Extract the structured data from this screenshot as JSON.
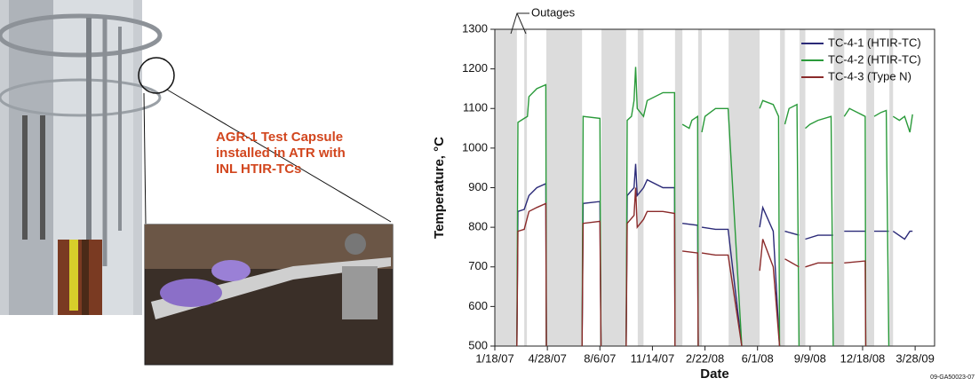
{
  "figure": {
    "callout": [
      "AGR-1 Test Capsule",
      "installed in ATR with",
      "INL HTIR-TCs"
    ]
  },
  "chart_data": {
    "type": "line",
    "x_label": "Date",
    "y_label": "Temperature, °C",
    "annotation": "Outages",
    "note": "09-GA50023-07",
    "xlim": [
      0,
      837
    ],
    "ylim": [
      500,
      1300
    ],
    "xticks": [
      {
        "value": 0,
        "label": "1/18/07"
      },
      {
        "value": 100,
        "label": "4/28/07"
      },
      {
        "value": 200,
        "label": "8/6/07"
      },
      {
        "value": 300,
        "label": "11/14/07"
      },
      {
        "value": 400,
        "label": "2/22/08"
      },
      {
        "value": 500,
        "label": "6/1/08"
      },
      {
        "value": 600,
        "label": "9/9/08"
      },
      {
        "value": 700,
        "label": "12/18/08"
      },
      {
        "value": 800,
        "label": "3/28/09"
      }
    ],
    "yticks": [
      500,
      600,
      700,
      800,
      900,
      1000,
      1100,
      1200,
      1300
    ],
    "outages": [
      [
        0,
        42
      ],
      [
        56,
        61
      ],
      [
        98,
        166
      ],
      [
        203,
        250
      ],
      [
        272,
        283
      ],
      [
        343,
        357
      ],
      [
        387,
        394
      ],
      [
        445,
        504
      ],
      [
        543,
        552
      ],
      [
        580,
        591
      ],
      [
        645,
        665
      ],
      [
        707,
        722
      ],
      [
        751,
        758
      ]
    ],
    "outage_color": "#dcdcdc",
    "legend": "upper right",
    "series": [
      {
        "name": "TC-4-1 (HTIR-TC)",
        "color": "#2b2a78",
        "x": [
          42,
          44,
          56,
          65,
          80,
          97,
          98,
          null,
          166,
          168,
          200,
          202,
          null,
          250,
          252,
          265,
          268,
          271,
          283,
          290,
          320,
          342,
          343,
          null,
          357,
          386,
          387,
          null,
          394,
          420,
          444,
          470,
          null,
          504,
          510,
          530,
          542,
          null,
          552,
          579,
          null,
          591,
          615,
          644,
          null,
          665,
          705,
          null,
          722,
          750,
          null,
          758,
          780,
          790,
          795
        ],
        "values": [
          500,
          840,
          845,
          880,
          900,
          910,
          500,
          null,
          500,
          860,
          865,
          500,
          null,
          500,
          880,
          900,
          960,
          880,
          900,
          920,
          900,
          900,
          500,
          null,
          810,
          805,
          500,
          null,
          800,
          795,
          795,
          500,
          null,
          800,
          850,
          790,
          500,
          null,
          790,
          780,
          null,
          770,
          780,
          780,
          null,
          790,
          790,
          null,
          790,
          790,
          null,
          790,
          770,
          790,
          790
        ]
      },
      {
        "name": "TC-4-2 (HTIR-TC)",
        "color": "#2a9a3a",
        "x": [
          42,
          44,
          56,
          62,
          65,
          80,
          97,
          98,
          null,
          166,
          168,
          200,
          202,
          null,
          250,
          252,
          260,
          265,
          268,
          271,
          283,
          290,
          320,
          342,
          343,
          null,
          357,
          370,
          375,
          386,
          387,
          null,
          394,
          400,
          410,
          420,
          444,
          470,
          null,
          504,
          510,
          530,
          540,
          542,
          null,
          552,
          560,
          575,
          579,
          null,
          591,
          600,
          615,
          640,
          644,
          null,
          665,
          675,
          690,
          705,
          706,
          null,
          722,
          735,
          745,
          750,
          null,
          758,
          770,
          780,
          790,
          795
        ],
        "values": [
          500,
          1065,
          1075,
          1080,
          1130,
          1150,
          1160,
          500,
          null,
          500,
          1080,
          1075,
          500,
          null,
          500,
          1070,
          1080,
          1120,
          1205,
          1100,
          1080,
          1120,
          1140,
          1140,
          500,
          null,
          1060,
          1050,
          1070,
          1080,
          500,
          null,
          1040,
          1080,
          1090,
          1100,
          1100,
          500,
          null,
          1100,
          1120,
          1110,
          1080,
          500,
          null,
          1060,
          1100,
          1110,
          500,
          null,
          1050,
          1060,
          1070,
          1080,
          500,
          null,
          1080,
          1100,
          1090,
          1080,
          500,
          null,
          1080,
          1090,
          1095,
          500,
          null,
          1080,
          1070,
          1080,
          1040,
          1085
        ]
      },
      {
        "name": "TC-4-3 (Type N)",
        "color": "#8a2a2a",
        "x": [
          42,
          44,
          56,
          65,
          80,
          97,
          98,
          null,
          166,
          168,
          200,
          202,
          null,
          250,
          252,
          265,
          268,
          271,
          283,
          290,
          320,
          342,
          343,
          null,
          357,
          386,
          387,
          null,
          394,
          420,
          444,
          470,
          null,
          504,
          510,
          530,
          542,
          null,
          552,
          579,
          null,
          591,
          615,
          644,
          null,
          665,
          705,
          706
        ],
        "values": [
          500,
          790,
          795,
          840,
          850,
          860,
          500,
          null,
          500,
          810,
          815,
          500,
          null,
          500,
          810,
          830,
          900,
          800,
          820,
          840,
          840,
          835,
          500,
          null,
          740,
          735,
          500,
          null,
          735,
          730,
          730,
          500,
          null,
          690,
          770,
          700,
          500,
          null,
          720,
          700,
          null,
          700,
          710,
          710,
          null,
          710,
          715,
          500
        ]
      }
    ]
  }
}
